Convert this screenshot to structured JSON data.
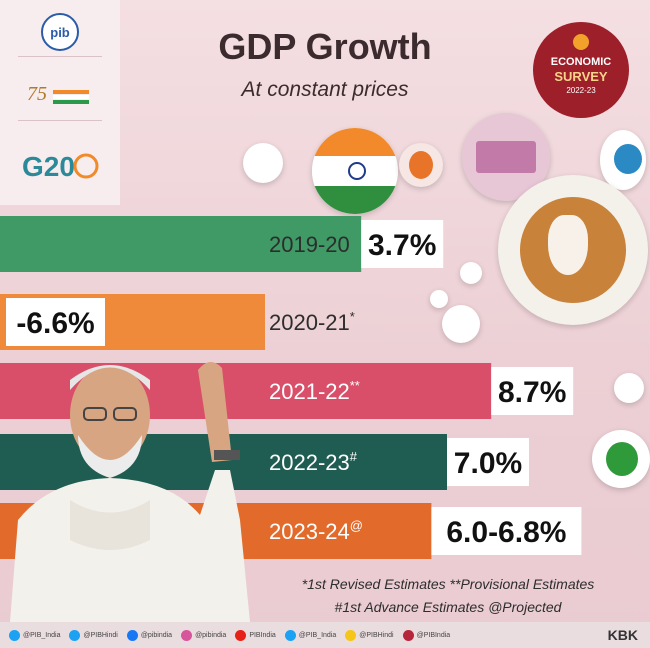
{
  "logos": {
    "pib": "pib",
    "azadi": "75",
    "g20": "G20"
  },
  "header": {
    "title": "GDP Growth",
    "subtitle": "At constant prices"
  },
  "badge": {
    "line1": "ECONOMIC",
    "line2": "SURVEY",
    "line3": "2022-23"
  },
  "chart_data": {
    "type": "bar",
    "title": "GDP Growth",
    "subtitle": "At constant prices",
    "categories": [
      "2019-20",
      "2020-21",
      "2021-22",
      "2022-23",
      "2023-24"
    ],
    "markers": [
      "",
      "*",
      "**",
      "#",
      "@"
    ],
    "values": [
      3.7,
      -6.6,
      8.7,
      7.0,
      6.4
    ],
    "value_labels": [
      "3.7%",
      "-6.6%",
      "8.7%",
      "7.0%",
      "6.0-6.8%"
    ],
    "range_2023_24": [
      6.0,
      6.8
    ],
    "colors": [
      "#3f9a66",
      "#ee8a3a",
      "#d94f6a",
      "#1f5d53",
      "#e26a2a"
    ]
  },
  "footnotes": {
    "line1": "*1st Revised Estimates **Provisional Estimates",
    "line2": "#1st Advance Estimates @Projected"
  },
  "footer": {
    "handles": [
      {
        "icon": "twitter-icon",
        "text": "@PIB_India",
        "color": "#1da1f2"
      },
      {
        "icon": "twitter-icon",
        "text": "@PIBHindi",
        "color": "#1da1f2"
      },
      {
        "icon": "facebook-icon",
        "text": "@pibindia",
        "color": "#1877f2"
      },
      {
        "icon": "instagram-icon",
        "text": "@pibindia",
        "color": "#d6559b"
      },
      {
        "icon": "youtube-icon",
        "text": "PIBIndia",
        "color": "#e62117"
      },
      {
        "icon": "twitter-icon",
        "text": "@PIB_India",
        "color": "#1da1f2"
      },
      {
        "icon": "koo-icon",
        "text": "@PIBHindi",
        "color": "#f5c518"
      },
      {
        "icon": "linkedin-icon",
        "text": "@PIBIndia",
        "color": "#b5263a"
      }
    ],
    "credit": "KBK"
  }
}
